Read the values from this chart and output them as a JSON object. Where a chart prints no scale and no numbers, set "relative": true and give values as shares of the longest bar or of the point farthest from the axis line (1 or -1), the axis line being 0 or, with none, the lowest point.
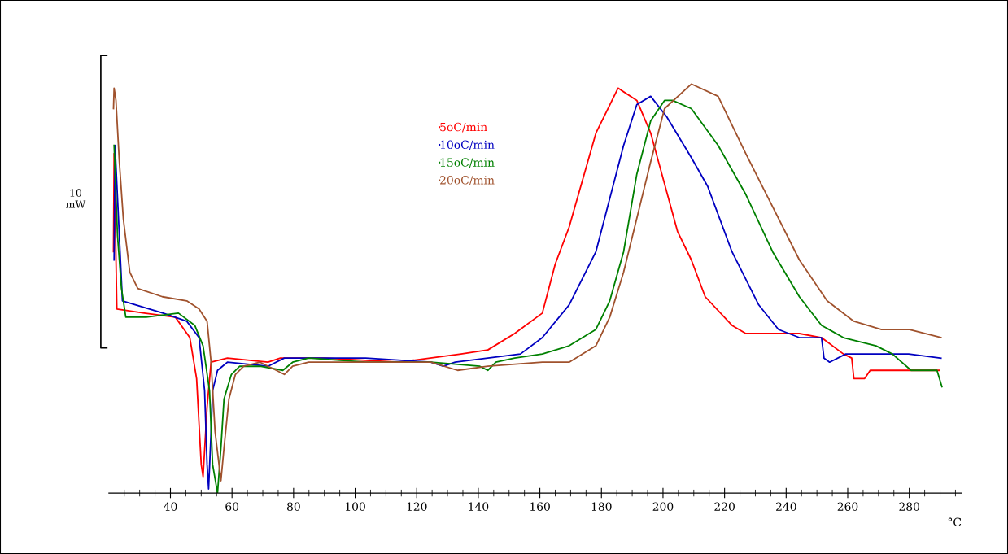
{
  "chart_data": {
    "type": "line",
    "relative": true,
    "xlabel": "°C",
    "legend": "top",
    "annotations": [
      "10\nmW"
    ],
    "xlim": [
      20,
      297
    ],
    "xticks": [
      {
        "value": 25,
        "label": null
      },
      {
        "value": 30,
        "label": null
      },
      {
        "value": 35,
        "label": null
      },
      40,
      {
        "value": 45,
        "label": null
      },
      {
        "value": 50,
        "label": null
      },
      {
        "value": 55,
        "label": null
      },
      60,
      {
        "value": 65,
        "label": null
      },
      {
        "value": 70,
        "label": null
      },
      {
        "value": 75,
        "label": null
      },
      80,
      {
        "value": 85,
        "label": null
      },
      {
        "value": 90,
        "label": null
      },
      {
        "value": 95,
        "label": null
      },
      100,
      {
        "value": 105,
        "label": null
      },
      {
        "value": 110,
        "label": null
      },
      {
        "value": 115,
        "label": null
      },
      120,
      {
        "value": 125,
        "label": null
      },
      {
        "value": 130,
        "label": null
      },
      {
        "value": 135,
        "label": null
      },
      140,
      {
        "value": 145,
        "label": null
      },
      {
        "value": 150,
        "label": null
      },
      {
        "value": 155,
        "label": null
      },
      160,
      {
        "value": 165,
        "label": null
      },
      {
        "value": 170,
        "label": null
      },
      {
        "value": 175,
        "label": null
      },
      180,
      {
        "value": 185,
        "label": null
      },
      {
        "value": 190,
        "label": null
      },
      {
        "value": 195,
        "label": null
      },
      200,
      {
        "value": 205,
        "label": null
      },
      {
        "value": 210,
        "label": null
      },
      {
        "value": 215,
        "label": null
      },
      220,
      {
        "value": 225,
        "label": null
      },
      {
        "value": 230,
        "label": null
      },
      {
        "value": 235,
        "label": null
      },
      240,
      {
        "value": 245,
        "label": null
      },
      {
        "value": 250,
        "label": null
      },
      {
        "value": 255,
        "label": null
      },
      260,
      {
        "value": 265,
        "label": null
      },
      {
        "value": 270,
        "label": null
      },
      {
        "value": 275,
        "label": null
      },
      280,
      {
        "value": 285,
        "label": null
      },
      {
        "value": 290,
        "label": null
      },
      {
        "value": 295,
        "label": null
      }
    ],
    "series": [
      {
        "name": "5oC/min",
        "color": "#ff0000",
        "x": [
          21.5,
          21.7,
          22.6,
          31.5,
          41.6,
          46.3,
          48.5,
          50.0,
          50.6,
          51.9,
          53.2,
          58.5,
          71.7,
          75.7,
          90.2,
          114.0,
          134.4,
          143.1,
          151.8,
          160.8,
          165.0,
          169.5,
          178.2,
          185.4,
          191.5,
          196.0,
          204.7,
          209.2,
          213.7,
          222.4,
          226.9,
          244.3,
          251.5,
          258.6,
          261.3,
          262.0,
          265.5,
          267.3,
          270.8,
          288.5,
          289.8
        ],
        "values": [
          0.59,
          0.83,
          0.45,
          0.44,
          0.43,
          0.38,
          0.28,
          0.07,
          0.04,
          0.21,
          0.32,
          0.33,
          0.32,
          0.33,
          0.33,
          0.32,
          0.34,
          0.35,
          0.39,
          0.44,
          0.56,
          0.65,
          0.88,
          0.99,
          0.96,
          0.88,
          0.64,
          0.57,
          0.48,
          0.41,
          0.39,
          0.39,
          0.38,
          0.34,
          0.33,
          0.28,
          0.28,
          0.3,
          0.3,
          0.3,
          0.3
        ]
      },
      {
        "name": "10oC/min",
        "color": "#0000c0",
        "x": [
          21.7,
          22.0,
          24.4,
          37.6,
          45.3,
          49.3,
          51.1,
          51.9,
          52.4,
          53.2,
          53.7,
          55.3,
          58.5,
          71.7,
          77.0,
          103.4,
          124.6,
          128.6,
          132.5,
          143.1,
          153.7,
          160.8,
          169.5,
          178.2,
          187.2,
          191.5,
          196.0,
          201.2,
          209.2,
          214.5,
          222.4,
          231.1,
          237.5,
          244.3,
          251.5,
          252.3,
          254.1,
          259.4,
          279.8,
          290.3
        ],
        "values": [
          0.57,
          0.85,
          0.47,
          0.44,
          0.42,
          0.38,
          0.25,
          0.07,
          0.01,
          0.15,
          0.25,
          0.3,
          0.32,
          0.31,
          0.33,
          0.33,
          0.32,
          0.31,
          0.32,
          0.33,
          0.34,
          0.38,
          0.46,
          0.59,
          0.85,
          0.95,
          0.97,
          0.92,
          0.82,
          0.75,
          0.59,
          0.46,
          0.4,
          0.38,
          0.38,
          0.33,
          0.32,
          0.34,
          0.34,
          0.33
        ]
      },
      {
        "name": "15oC/min",
        "color": "#008000",
        "x": [
          21.7,
          22.8,
          24.1,
          25.5,
          32.1,
          42.6,
          47.9,
          50.6,
          52.7,
          53.7,
          55.3,
          56.4,
          57.4,
          59.8,
          62.5,
          69.1,
          76.5,
          79.7,
          84.9,
          103.4,
          124.6,
          140.5,
          143.1,
          145.7,
          151.8,
          160.8,
          169.5,
          178.2,
          182.7,
          187.2,
          191.5,
          196.0,
          200.5,
          203.1,
          209.2,
          217.9,
          226.9,
          235.6,
          244.3,
          251.5,
          258.6,
          269.2,
          274.5,
          280.6,
          289.0,
          290.6
        ],
        "values": [
          0.85,
          0.63,
          0.5,
          0.43,
          0.43,
          0.44,
          0.41,
          0.36,
          0.25,
          0.07,
          0.0,
          0.11,
          0.23,
          0.29,
          0.31,
          0.31,
          0.3,
          0.32,
          0.33,
          0.32,
          0.32,
          0.31,
          0.3,
          0.32,
          0.33,
          0.34,
          0.36,
          0.4,
          0.47,
          0.59,
          0.78,
          0.91,
          0.96,
          0.96,
          0.94,
          0.85,
          0.73,
          0.59,
          0.48,
          0.41,
          0.38,
          0.36,
          0.34,
          0.3,
          0.3,
          0.26
        ]
      },
      {
        "name": "20oC/min",
        "color": "#a0522d",
        "x": [
          21.5,
          21.7,
          22.3,
          23.4,
          24.7,
          26.8,
          29.4,
          37.4,
          45.3,
          49.3,
          51.9,
          53.2,
          54.5,
          56.4,
          57.4,
          59.0,
          61.1,
          63.8,
          69.1,
          74.4,
          77.0,
          79.7,
          84.9,
          103.4,
          124.6,
          133.3,
          143.1,
          160.8,
          169.5,
          178.2,
          182.7,
          187.2,
          196.0,
          200.5,
          209.2,
          217.9,
          226.9,
          235.6,
          244.3,
          253.3,
          262.0,
          270.8,
          279.8,
          290.3
        ],
        "values": [
          0.94,
          0.99,
          0.96,
          0.81,
          0.67,
          0.54,
          0.5,
          0.48,
          0.47,
          0.45,
          0.42,
          0.32,
          0.15,
          0.03,
          0.11,
          0.23,
          0.29,
          0.31,
          0.32,
          0.3,
          0.29,
          0.31,
          0.32,
          0.32,
          0.32,
          0.3,
          0.31,
          0.32,
          0.32,
          0.36,
          0.43,
          0.54,
          0.81,
          0.94,
          1.0,
          0.97,
          0.83,
          0.7,
          0.57,
          0.47,
          0.42,
          0.4,
          0.4,
          0.38
        ]
      }
    ]
  }
}
